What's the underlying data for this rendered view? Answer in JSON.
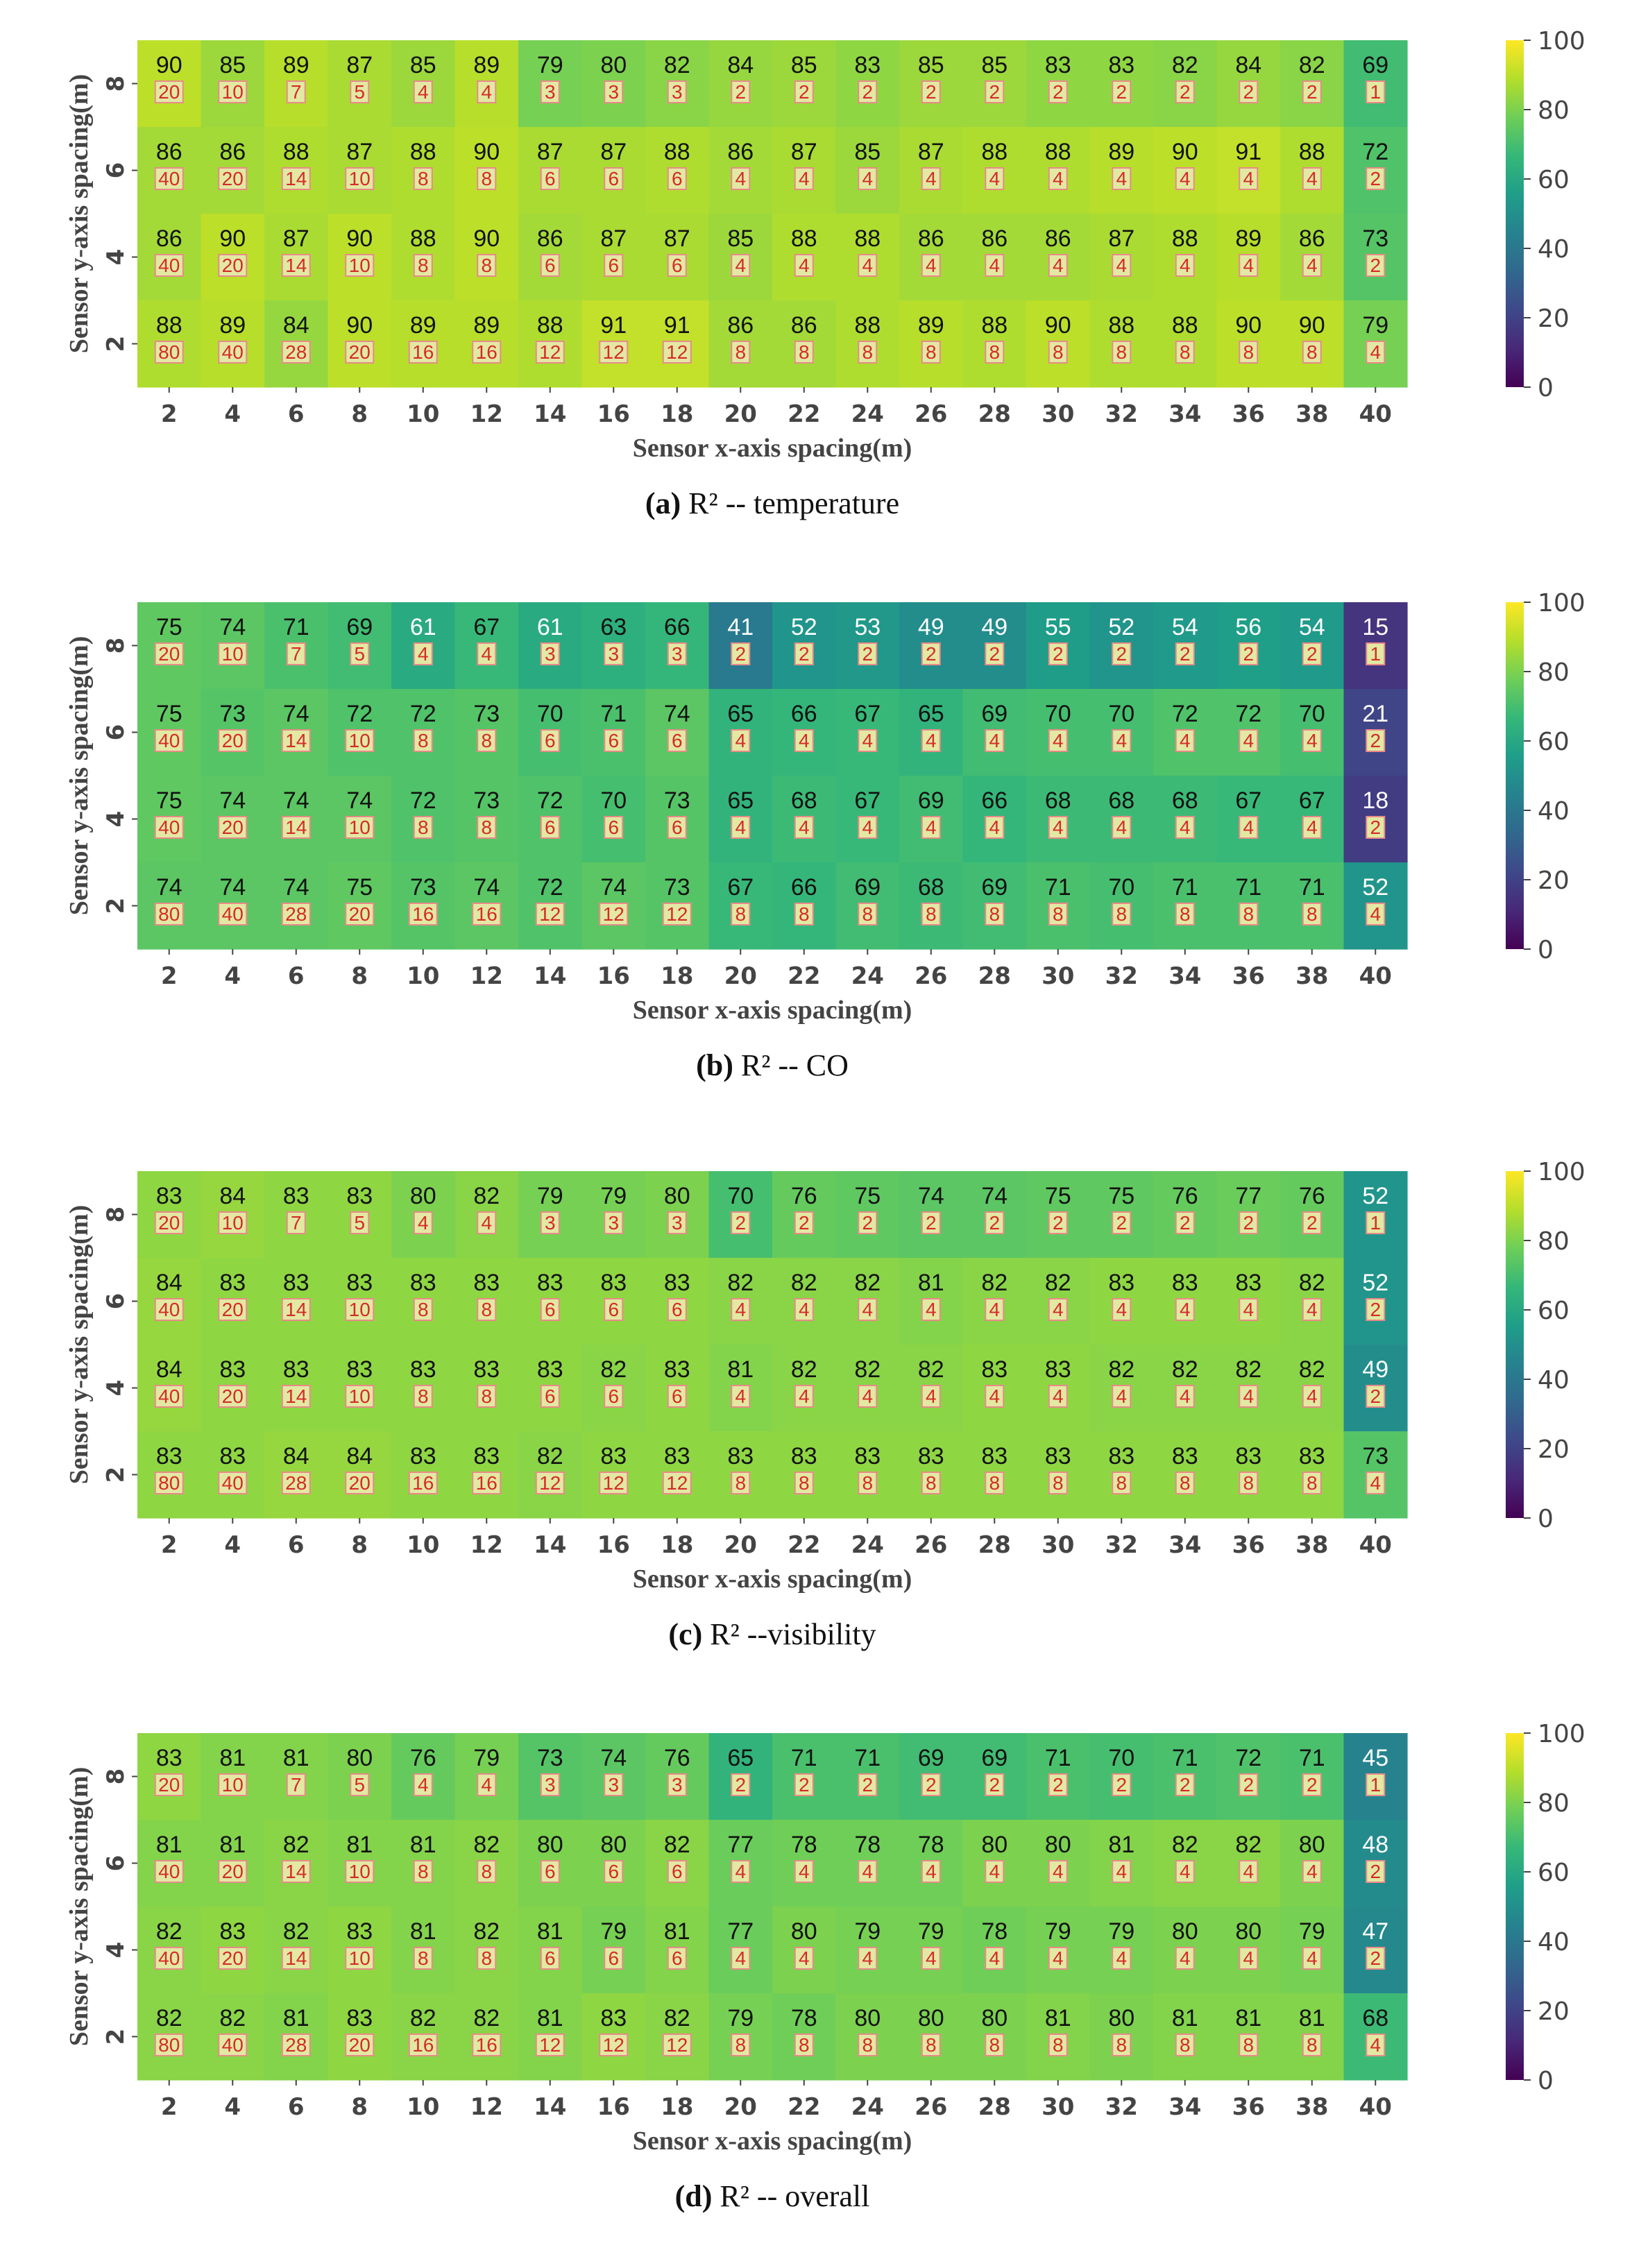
{
  "colors": {
    "viridis": [
      "#440154",
      "#482878",
      "#3e4989",
      "#31688e",
      "#26828e",
      "#1f9e89",
      "#35b779",
      "#6ece58",
      "#b5de2b",
      "#fde725"
    ],
    "count_box_fill": "#e3e8a2",
    "count_box_border": "#e88a8a",
    "count_text": "#d62a2a"
  },
  "chart_data": [
    {
      "type": "heatmap",
      "caption_letter": "(a)",
      "caption_text": "R² -- temperature",
      "xlabel": "Sensor x-axis spacing(m)",
      "ylabel": "Sensor y-axis spacing(m)",
      "x": [
        "2",
        "4",
        "6",
        "8",
        "10",
        "12",
        "14",
        "16",
        "18",
        "20",
        "22",
        "24",
        "26",
        "28",
        "30",
        "32",
        "34",
        "36",
        "38",
        "40"
      ],
      "y": [
        "8",
        "6",
        "4",
        "2"
      ],
      "values": [
        [
          90,
          85,
          89,
          87,
          85,
          89,
          79,
          80,
          82,
          84,
          85,
          83,
          85,
          85,
          83,
          83,
          82,
          84,
          82,
          69
        ],
        [
          86,
          86,
          88,
          87,
          88,
          90,
          87,
          87,
          88,
          86,
          87,
          85,
          87,
          88,
          88,
          89,
          90,
          91,
          88,
          72
        ],
        [
          86,
          90,
          87,
          90,
          88,
          90,
          86,
          87,
          87,
          85,
          88,
          88,
          86,
          86,
          86,
          87,
          88,
          89,
          86,
          73
        ],
        [
          88,
          89,
          84,
          90,
          89,
          89,
          88,
          91,
          91,
          86,
          86,
          88,
          89,
          88,
          90,
          88,
          88,
          90,
          90,
          79
        ]
      ],
      "counts": [
        [
          20,
          10,
          7,
          5,
          4,
          4,
          3,
          3,
          3,
          2,
          2,
          2,
          2,
          2,
          2,
          2,
          2,
          2,
          2,
          1
        ],
        [
          40,
          20,
          14,
          10,
          8,
          8,
          6,
          6,
          6,
          4,
          4,
          4,
          4,
          4,
          4,
          4,
          4,
          4,
          4,
          2
        ],
        [
          40,
          20,
          14,
          10,
          8,
          8,
          6,
          6,
          6,
          4,
          4,
          4,
          4,
          4,
          4,
          4,
          4,
          4,
          4,
          2
        ],
        [
          80,
          40,
          28,
          20,
          16,
          16,
          12,
          12,
          12,
          8,
          8,
          8,
          8,
          8,
          8,
          8,
          8,
          8,
          8,
          4
        ]
      ],
      "colorbar_ticks": [
        "0",
        "20",
        "40",
        "60",
        "80",
        "100"
      ],
      "vmin": 0,
      "vmax": 100
    },
    {
      "type": "heatmap",
      "caption_letter": "(b)",
      "caption_text": "R² -- CO",
      "xlabel": "Sensor x-axis spacing(m)",
      "ylabel": "Sensor y-axis spacing(m)",
      "x": [
        "2",
        "4",
        "6",
        "8",
        "10",
        "12",
        "14",
        "16",
        "18",
        "20",
        "22",
        "24",
        "26",
        "28",
        "30",
        "32",
        "34",
        "36",
        "38",
        "40"
      ],
      "y": [
        "8",
        "6",
        "4",
        "2"
      ],
      "values": [
        [
          75,
          74,
          71,
          69,
          61,
          67,
          61,
          63,
          66,
          41,
          52,
          53,
          49,
          49,
          55,
          52,
          54,
          56,
          54,
          15
        ],
        [
          75,
          73,
          74,
          72,
          72,
          73,
          70,
          71,
          74,
          65,
          66,
          67,
          65,
          69,
          70,
          70,
          72,
          72,
          70,
          21
        ],
        [
          75,
          74,
          74,
          74,
          72,
          73,
          72,
          70,
          73,
          65,
          68,
          67,
          69,
          66,
          68,
          68,
          68,
          67,
          67,
          18
        ],
        [
          74,
          74,
          74,
          75,
          73,
          74,
          72,
          74,
          73,
          67,
          66,
          69,
          68,
          69,
          71,
          70,
          71,
          71,
          71,
          52
        ]
      ],
      "counts": [
        [
          20,
          10,
          7,
          5,
          4,
          4,
          3,
          3,
          3,
          2,
          2,
          2,
          2,
          2,
          2,
          2,
          2,
          2,
          2,
          1
        ],
        [
          40,
          20,
          14,
          10,
          8,
          8,
          6,
          6,
          6,
          4,
          4,
          4,
          4,
          4,
          4,
          4,
          4,
          4,
          4,
          2
        ],
        [
          40,
          20,
          14,
          10,
          8,
          8,
          6,
          6,
          6,
          4,
          4,
          4,
          4,
          4,
          4,
          4,
          4,
          4,
          4,
          2
        ],
        [
          80,
          40,
          28,
          20,
          16,
          16,
          12,
          12,
          12,
          8,
          8,
          8,
          8,
          8,
          8,
          8,
          8,
          8,
          8,
          4
        ]
      ],
      "colorbar_ticks": [
        "0",
        "20",
        "40",
        "60",
        "80",
        "100"
      ],
      "vmin": 0,
      "vmax": 100
    },
    {
      "type": "heatmap",
      "caption_letter": "(c)",
      "caption_text": "R² --visibility",
      "xlabel": "Sensor x-axis spacing(m)",
      "ylabel": "Sensor y-axis spacing(m)",
      "x": [
        "2",
        "4",
        "6",
        "8",
        "10",
        "12",
        "14",
        "16",
        "18",
        "20",
        "22",
        "24",
        "26",
        "28",
        "30",
        "32",
        "34",
        "36",
        "38",
        "40"
      ],
      "y": [
        "8",
        "6",
        "4",
        "2"
      ],
      "values": [
        [
          83,
          84,
          83,
          83,
          80,
          82,
          79,
          79,
          80,
          70,
          76,
          75,
          74,
          74,
          75,
          75,
          76,
          77,
          76,
          52
        ],
        [
          84,
          83,
          83,
          83,
          83,
          83,
          83,
          83,
          83,
          82,
          82,
          82,
          81,
          82,
          82,
          83,
          83,
          83,
          82,
          52
        ],
        [
          84,
          83,
          83,
          83,
          83,
          83,
          83,
          82,
          83,
          81,
          82,
          82,
          82,
          83,
          83,
          82,
          82,
          82,
          82,
          49
        ],
        [
          83,
          83,
          84,
          84,
          83,
          83,
          82,
          83,
          83,
          83,
          83,
          83,
          83,
          83,
          83,
          83,
          83,
          83,
          83,
          73
        ]
      ],
      "counts": [
        [
          20,
          10,
          7,
          5,
          4,
          4,
          3,
          3,
          3,
          2,
          2,
          2,
          2,
          2,
          2,
          2,
          2,
          2,
          2,
          1
        ],
        [
          40,
          20,
          14,
          10,
          8,
          8,
          6,
          6,
          6,
          4,
          4,
          4,
          4,
          4,
          4,
          4,
          4,
          4,
          4,
          2
        ],
        [
          40,
          20,
          14,
          10,
          8,
          8,
          6,
          6,
          6,
          4,
          4,
          4,
          4,
          4,
          4,
          4,
          4,
          4,
          4,
          2
        ],
        [
          80,
          40,
          28,
          20,
          16,
          16,
          12,
          12,
          12,
          8,
          8,
          8,
          8,
          8,
          8,
          8,
          8,
          8,
          8,
          4
        ]
      ],
      "colorbar_ticks": [
        "0",
        "20",
        "40",
        "60",
        "80",
        "100"
      ],
      "vmin": 0,
      "vmax": 100
    },
    {
      "type": "heatmap",
      "caption_letter": "(d)",
      "caption_text": "R² -- overall",
      "xlabel": "Sensor x-axis spacing(m)",
      "ylabel": "Sensor y-axis spacing(m)",
      "x": [
        "2",
        "4",
        "6",
        "8",
        "10",
        "12",
        "14",
        "16",
        "18",
        "20",
        "22",
        "24",
        "26",
        "28",
        "30",
        "32",
        "34",
        "36",
        "38",
        "40"
      ],
      "y": [
        "8",
        "6",
        "4",
        "2"
      ],
      "values": [
        [
          83,
          81,
          81,
          80,
          76,
          79,
          73,
          74,
          76,
          65,
          71,
          71,
          69,
          69,
          71,
          70,
          71,
          72,
          71,
          45
        ],
        [
          81,
          81,
          82,
          81,
          81,
          82,
          80,
          80,
          82,
          77,
          78,
          78,
          78,
          80,
          80,
          81,
          82,
          82,
          80,
          48
        ],
        [
          82,
          83,
          82,
          83,
          81,
          82,
          81,
          79,
          81,
          77,
          80,
          79,
          79,
          78,
          79,
          79,
          80,
          80,
          79,
          47
        ],
        [
          82,
          82,
          81,
          83,
          82,
          82,
          81,
          83,
          82,
          79,
          78,
          80,
          80,
          80,
          81,
          80,
          81,
          81,
          81,
          68
        ]
      ],
      "counts": [
        [
          20,
          10,
          7,
          5,
          4,
          4,
          3,
          3,
          3,
          2,
          2,
          2,
          2,
          2,
          2,
          2,
          2,
          2,
          2,
          1
        ],
        [
          40,
          20,
          14,
          10,
          8,
          8,
          6,
          6,
          6,
          4,
          4,
          4,
          4,
          4,
          4,
          4,
          4,
          4,
          4,
          2
        ],
        [
          40,
          20,
          14,
          10,
          8,
          8,
          6,
          6,
          6,
          4,
          4,
          4,
          4,
          4,
          4,
          4,
          4,
          4,
          4,
          2
        ],
        [
          80,
          40,
          28,
          20,
          16,
          16,
          12,
          12,
          12,
          8,
          8,
          8,
          8,
          8,
          8,
          8,
          8,
          8,
          8,
          4
        ]
      ],
      "colorbar_ticks": [
        "0",
        "20",
        "40",
        "60",
        "80",
        "100"
      ],
      "vmin": 0,
      "vmax": 100
    }
  ]
}
